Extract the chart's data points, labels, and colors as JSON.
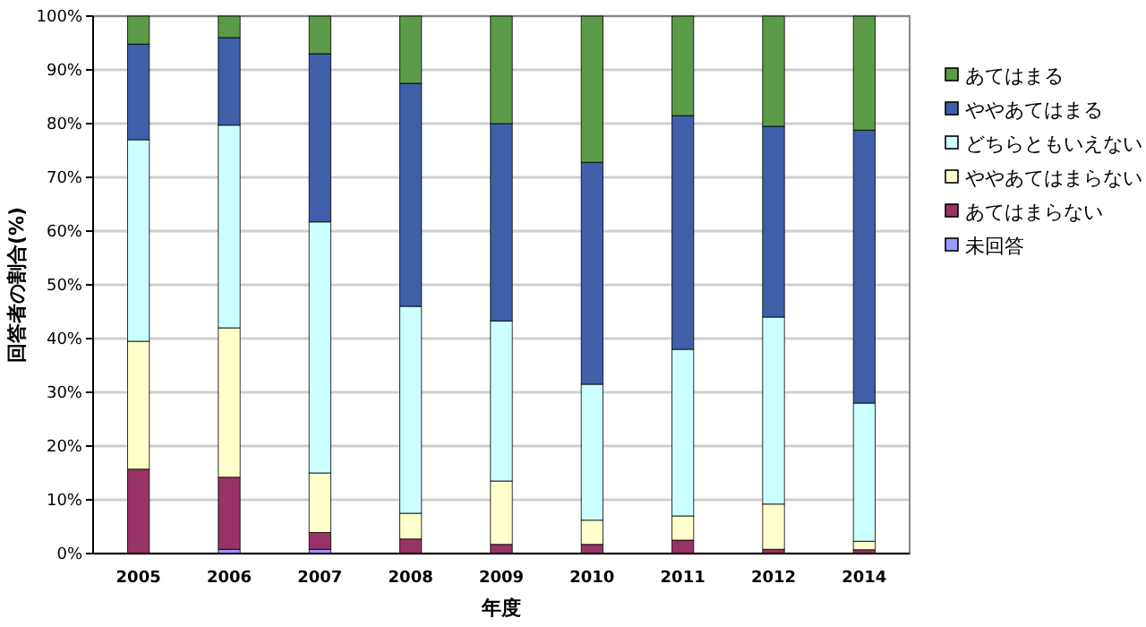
{
  "chart_data": {
    "type": "bar",
    "stacked": true,
    "xlabel": "年度",
    "ylabel": "回答者の割合(%)",
    "categories": [
      "2005",
      "2006",
      "2007",
      "2008",
      "2009",
      "2010",
      "2011",
      "2012",
      "2014"
    ],
    "series": [
      {
        "name": "未回答",
        "color": "#9999ff",
        "values": [
          0,
          0.8,
          0.8,
          0,
          0,
          0,
          0,
          0,
          0
        ]
      },
      {
        "name": "あてはまらない",
        "color": "#993366",
        "values": [
          15.7,
          13.4,
          3.1,
          2.7,
          1.7,
          1.7,
          2.5,
          0.8,
          0.7
        ]
      },
      {
        "name": "ややあてはまらない",
        "color": "#ffffcc",
        "values": [
          23.8,
          27.8,
          11.1,
          4.8,
          11.8,
          4.5,
          4.5,
          8.4,
          1.6
        ]
      },
      {
        "name": "どちらともいえない",
        "color": "#ccffff",
        "values": [
          37.5,
          37.7,
          46.7,
          38.5,
          29.8,
          25.3,
          31,
          34.8,
          25.7
        ]
      },
      {
        "name": "ややあてはまる",
        "color": "#3f5fa8",
        "values": [
          17.8,
          16.3,
          31.3,
          41.5,
          36.7,
          41.3,
          43.5,
          35.5,
          50.8
        ]
      },
      {
        "name": "あてはまる",
        "color": "#5b9a46",
        "values": [
          5.2,
          4,
          7,
          12.5,
          20,
          27.2,
          18.5,
          20.5,
          21.2
        ]
      }
    ],
    "ylim": [
      0,
      100
    ],
    "yticks": [
      {
        "value": 0,
        "label": "0%"
      },
      {
        "value": 10,
        "label": "10%"
      },
      {
        "value": 20,
        "label": "20%"
      },
      {
        "value": 30,
        "label": "30%"
      },
      {
        "value": 40,
        "label": "40%"
      },
      {
        "value": 50,
        "label": "50%"
      },
      {
        "value": 60,
        "label": "60%"
      },
      {
        "value": 70,
        "label": "70%"
      },
      {
        "value": 80,
        "label": "80%"
      },
      {
        "value": 90,
        "label": "90%"
      },
      {
        "value": 100,
        "label": "100%"
      }
    ],
    "grid": "y",
    "legend": "right"
  }
}
